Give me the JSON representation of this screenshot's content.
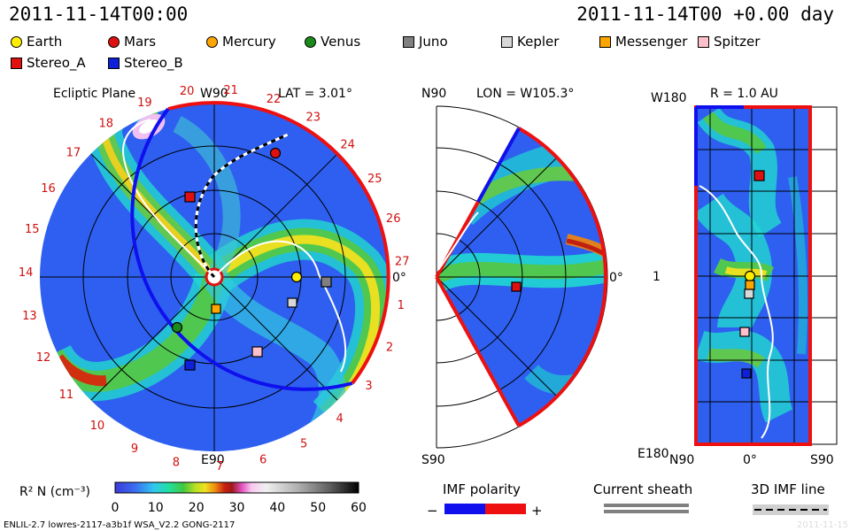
{
  "header": {
    "date_left": "2011-11-14T00:00",
    "date_right": "2011-11-14T00 +0.00 day"
  },
  "legend": [
    {
      "name": "Earth",
      "shape": "circle",
      "color": "#ffee00"
    },
    {
      "name": "Mars",
      "shape": "circle",
      "color": "#e01010"
    },
    {
      "name": "Mercury",
      "shape": "circle",
      "color": "#ffa500"
    },
    {
      "name": "Venus",
      "shape": "circle",
      "color": "#1a8a1a"
    },
    {
      "name": "Juno",
      "shape": "square",
      "color": "#808080"
    },
    {
      "name": "Kepler",
      "shape": "square",
      "color": "#d8d8d8"
    },
    {
      "name": "Messenger",
      "shape": "square",
      "color": "#ffa500"
    },
    {
      "name": "Spitzer",
      "shape": "square",
      "color": "#ffc0cb"
    },
    {
      "name": "Stereo_A",
      "shape": "square",
      "color": "#e01010"
    },
    {
      "name": "Stereo_B",
      "shape": "square",
      "color": "#1020d8"
    }
  ],
  "ecliptic": {
    "title": "Ecliptic Plane",
    "top_label": "W90",
    "lat_label": "LAT = 3.01°",
    "bottom_label": "E90",
    "right_label": "0°",
    "clock_labels": [
      "19",
      "20",
      "21",
      "22",
      "23",
      "24",
      "25",
      "26",
      "27",
      "1",
      "2",
      "3",
      "4",
      "5",
      "6",
      "7",
      "8",
      "9",
      "10",
      "11",
      "12",
      "13",
      "14",
      "15",
      "16",
      "17",
      "18"
    ]
  },
  "meridional": {
    "top_label": "N90",
    "lon_label": "LON = W105.3°",
    "bottom_label": "S90",
    "right_label": "0°"
  },
  "radial": {
    "title": "R = 1.0 AU",
    "top_left": "W180",
    "mid_left": "1",
    "bottom_left": "E180",
    "bottom_n90": "N90",
    "bottom_zero": "0°",
    "bottom_s90": "S90"
  },
  "colorbar": {
    "label": "R² N (cm⁻³)",
    "ticks": [
      "0",
      "10",
      "20",
      "30",
      "40",
      "50",
      "60"
    ],
    "range": [
      0,
      60
    ]
  },
  "imf": {
    "label": "IMF polarity",
    "minus": "−",
    "plus": "+",
    "colors": {
      "negative": "#1010ee",
      "positive": "#ee1010"
    }
  },
  "current_sheath": {
    "label": "Current sheath"
  },
  "imf_line": {
    "label": "3D IMF line"
  },
  "footer": {
    "model_info": "ENLIL-2.7 lowres-2117-a3b1f WSA_V2.2 GONG-2117",
    "date_small": "2011-11-15"
  }
}
